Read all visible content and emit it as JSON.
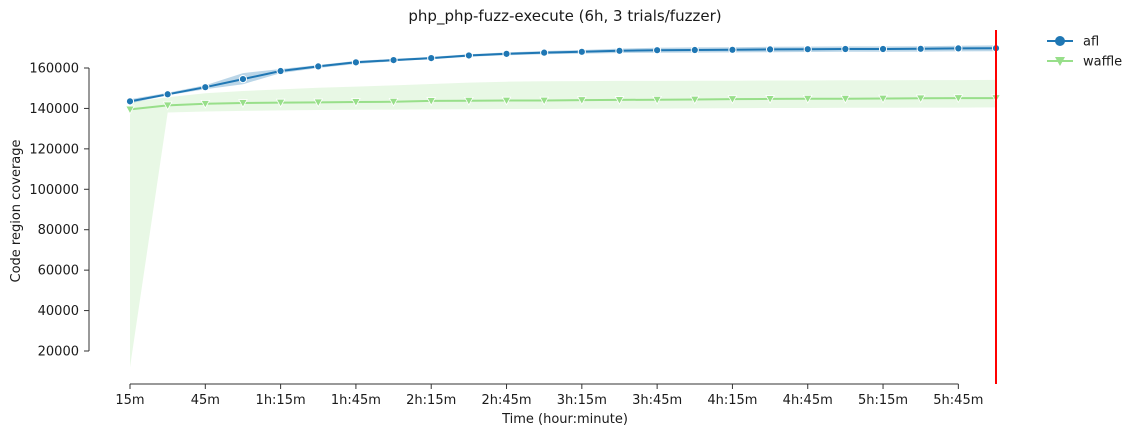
{
  "chart_data": {
    "type": "line",
    "title": "php_php-fuzz-execute (6h, 3 trials/fuzzer)",
    "xlabel": "Time (hour:minute)",
    "ylabel": "Code region coverage",
    "x_minutes": [
      15,
      30,
      45,
      60,
      75,
      90,
      105,
      120,
      135,
      150,
      165,
      180,
      195,
      210,
      225,
      240,
      255,
      270,
      285,
      300,
      315,
      330,
      345,
      360
    ],
    "x_tick_minutes": [
      15,
      45,
      75,
      105,
      135,
      165,
      195,
      225,
      255,
      285,
      315,
      345
    ],
    "x_tick_labels": [
      "15m",
      "45m",
      "1h:15m",
      "1h:45m",
      "2h:15m",
      "2h:45m",
      "3h:15m",
      "3h:45m",
      "4h:15m",
      "4h:45m",
      "5h:15m",
      "5h:45m"
    ],
    "y_ticks": [
      20000,
      40000,
      60000,
      80000,
      100000,
      120000,
      140000,
      160000
    ],
    "y_tick_labels": [
      "20000",
      "40000",
      "60000",
      "80000",
      "100000",
      "120000",
      "140000",
      "160000"
    ],
    "xlim": [
      15,
      360
    ],
    "ylim": [
      5000,
      175000
    ],
    "vline_minutes": 360,
    "vline_color": "#ff0000",
    "legend_position": "top-right",
    "series": [
      {
        "name": "afl",
        "marker": "circle",
        "color": "#1f77b4",
        "values": [
          143500,
          147000,
          150500,
          154500,
          158500,
          160800,
          162800,
          163900,
          164900,
          166200,
          167000,
          167600,
          168000,
          168500,
          168800,
          168900,
          169000,
          169200,
          169300,
          169400,
          169400,
          169500,
          169700,
          169800
        ],
        "lower": [
          142500,
          146500,
          149500,
          152000,
          157500,
          160000,
          162000,
          163300,
          164300,
          165600,
          166300,
          166800,
          167100,
          167400,
          167500,
          167600,
          167700,
          167800,
          167900,
          168000,
          168000,
          168100,
          168200,
          168300
        ],
        "upper": [
          144500,
          147800,
          151500,
          157500,
          159500,
          161500,
          163500,
          164500,
          165500,
          166800,
          167700,
          168400,
          168900,
          169600,
          170000,
          170200,
          170300,
          170500,
          170600,
          170700,
          170700,
          170800,
          171000,
          171200
        ]
      },
      {
        "name": "waffle",
        "marker": "triangle-down",
        "color": "#98df8a",
        "values": [
          139500,
          141500,
          142300,
          142700,
          142900,
          143000,
          143200,
          143300,
          143700,
          143800,
          143900,
          143900,
          144100,
          144200,
          144300,
          144400,
          144600,
          144700,
          144800,
          144800,
          144900,
          145000,
          145100,
          145100
        ],
        "lower": [
          12000,
          138000,
          138500,
          138800,
          139000,
          139200,
          139300,
          139400,
          139500,
          139600,
          139700,
          139700,
          139800,
          139900,
          139900,
          140000,
          140100,
          140200,
          140200,
          140300,
          140300,
          140400,
          140400,
          140500
        ],
        "upper": [
          143000,
          145500,
          147500,
          148600,
          149400,
          150200,
          150800,
          151400,
          152100,
          152800,
          153200,
          153400,
          153500,
          153600,
          153600,
          153700,
          153700,
          153800,
          153800,
          153900,
          153900,
          154000,
          154000,
          154100
        ]
      }
    ]
  }
}
